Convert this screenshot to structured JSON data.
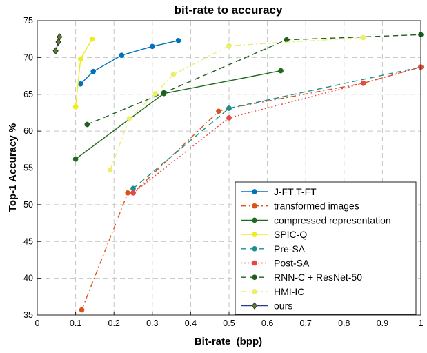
{
  "chart_data": {
    "type": "line",
    "title": "bit-rate to accuracy",
    "xlabel": "Bit-rate  (bpp)",
    "ylabel": "Top-1 Accuracy %",
    "xlim": [
      0,
      1
    ],
    "ylim": [
      35,
      75
    ],
    "xticks": [
      "0",
      "0.1",
      "0.2",
      "0.3",
      "0.4",
      "0.5",
      "0.6",
      "0.7",
      "0.8",
      "0.9",
      "1"
    ],
    "yticks": [
      "35",
      "40",
      "45",
      "50",
      "55",
      "60",
      "65",
      "70",
      "75"
    ],
    "grid": true,
    "legend_position": "bottom-right",
    "series": [
      {
        "name": "J-FT T-FT",
        "color": "#0072BD",
        "dash": "solid",
        "marker": "circle",
        "x": [
          0.113,
          0.146,
          0.22,
          0.3,
          0.368
        ],
        "y": [
          66.4,
          68.1,
          70.3,
          71.5,
          72.3
        ]
      },
      {
        "name": "transformed images",
        "color": "#D95319",
        "dash": "dashdot",
        "marker": "circle",
        "x": [
          0.116,
          0.236,
          0.25,
          0.473,
          0.5,
          0.85,
          1.0
        ],
        "y": [
          35.7,
          51.6,
          51.6,
          62.7,
          63.1,
          66.5,
          68.7
        ]
      },
      {
        "name": "compressed representation",
        "color": "#1E6B1E",
        "dash": "solid",
        "marker": "circle",
        "x": [
          0.1,
          0.33,
          0.635
        ],
        "y": [
          56.2,
          65.1,
          68.2
        ]
      },
      {
        "name": "SPIC-Q",
        "color": "#EDED1C",
        "dash": "solid",
        "marker": "circle",
        "x": [
          0.1,
          0.113,
          0.143
        ],
        "y": [
          63.3,
          69.8,
          72.5
        ]
      },
      {
        "name": "Pre-SA",
        "color": "#1B8F8F",
        "dash": "dashed",
        "marker": "circle",
        "x": [
          0.25,
          0.5,
          1.0
        ],
        "y": [
          52.2,
          63.1,
          68.7
        ]
      },
      {
        "name": "Post-SA",
        "color": "#E8473F",
        "dash": "dotted",
        "marker": "circle",
        "x": [
          0.25,
          0.5,
          0.85,
          1.0
        ],
        "y": [
          51.6,
          61.8,
          66.5,
          68.7
        ]
      },
      {
        "name": "RNN-C + ResNet-50",
        "color": "#1E5E1E",
        "dash": "dashed",
        "marker": "circle",
        "x": [
          0.13,
          0.33,
          0.65,
          1.0
        ],
        "y": [
          60.9,
          65.2,
          72.4,
          73.1
        ]
      },
      {
        "name": "HMI-IC",
        "color": "#EDED6E",
        "dash": "dashdot",
        "marker": "circle",
        "x": [
          0.19,
          0.24,
          0.308,
          0.355,
          0.5,
          0.85
        ],
        "y": [
          54.7,
          61.7,
          65.1,
          67.7,
          71.6,
          72.7
        ]
      },
      {
        "name": "ours",
        "color": "#2B3A8F",
        "marker_color": "#5B7F2B",
        "dash": "solid",
        "marker": "diamond",
        "x": [
          0.048,
          0.055,
          0.058
        ],
        "y": [
          70.9,
          72.1,
          72.8
        ]
      }
    ]
  }
}
